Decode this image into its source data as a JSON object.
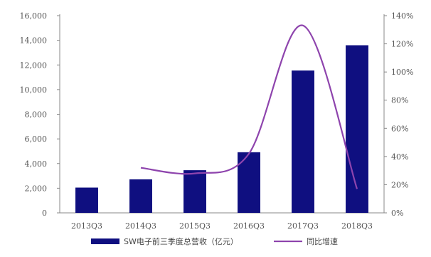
{
  "chart_data": {
    "type": "bar",
    "categories": [
      "2013Q3",
      "2014Q3",
      "2015Q3",
      "2016Q3",
      "2017Q3",
      "2018Q3"
    ],
    "series": [
      {
        "name": "SW电子前三季度总营收（亿元）",
        "type": "bar",
        "axis": "left",
        "values": [
          2050,
          2720,
          3460,
          4920,
          11550,
          13600
        ]
      },
      {
        "name": "同比增速",
        "type": "line",
        "axis": "right",
        "values": [
          null,
          32,
          28,
          42,
          133,
          17
        ]
      }
    ],
    "y_left": {
      "ticks": [
        "0",
        "2,000",
        "4,000",
        "6,000",
        "8,000",
        "10,000",
        "12,000",
        "14,000",
        "16,000"
      ],
      "ylim": [
        0,
        16000
      ]
    },
    "y_right": {
      "ticks": [
        "0%",
        "20%",
        "40%",
        "60%",
        "80%",
        "100%",
        "120%",
        "140%"
      ],
      "ylim": [
        0,
        140
      ]
    },
    "colors": {
      "bar": "#0f0f80",
      "line": "#8e44ad"
    },
    "legend_position": "bottom",
    "grid": false
  }
}
